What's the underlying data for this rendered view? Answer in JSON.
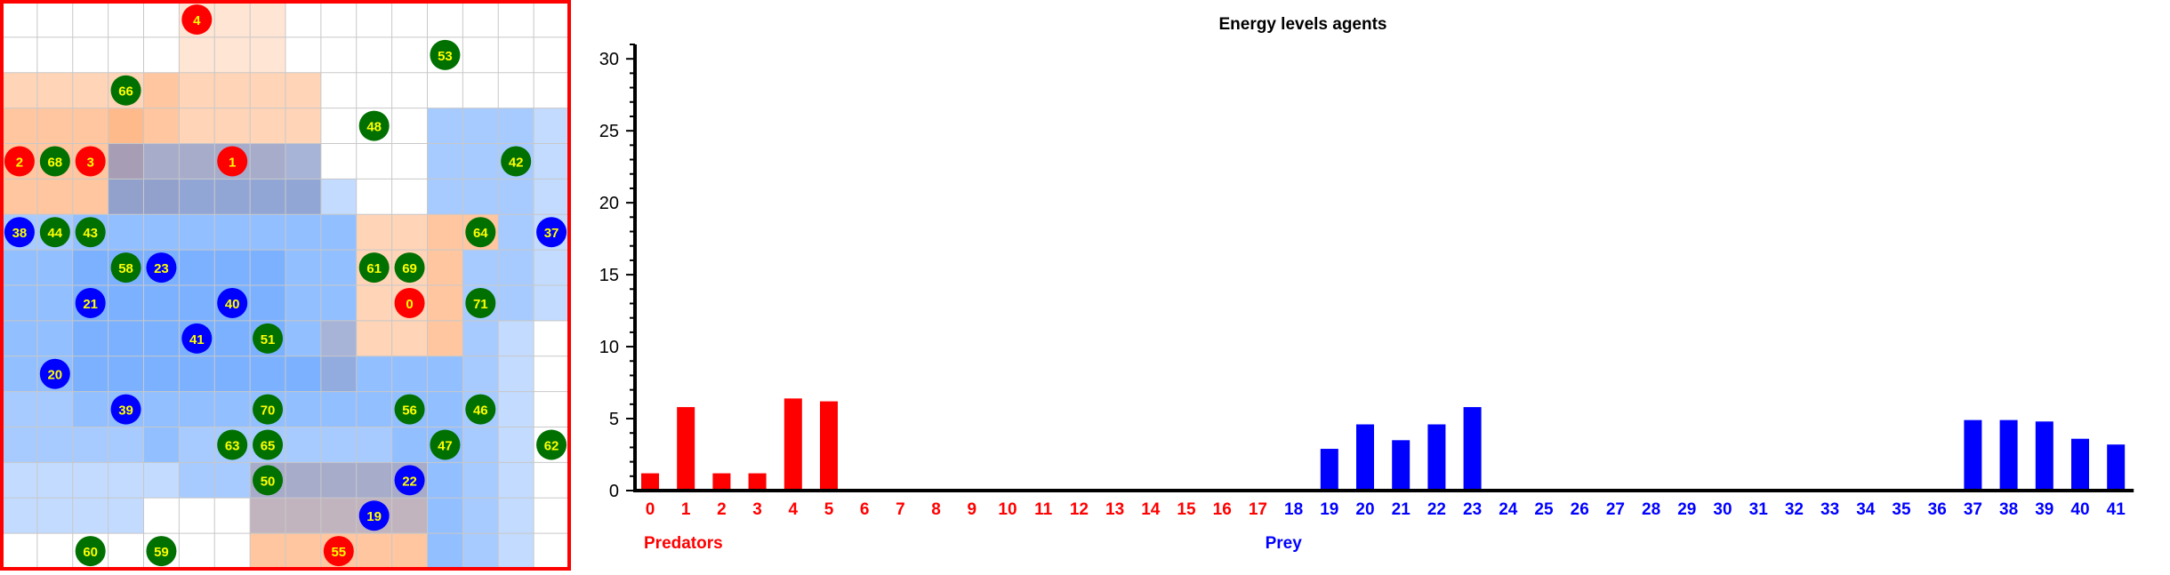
{
  "chart_data": {
    "type": "bar",
    "title": "Energy levels agents",
    "xlabel": "",
    "ylabel": "",
    "ylim": [
      0,
      31
    ],
    "yticks": [
      0,
      5,
      10,
      15,
      20,
      25,
      30
    ],
    "groups": [
      {
        "name": "Predators",
        "color": "#ff0000"
      },
      {
        "name": "Prey",
        "color": "#0000ff"
      }
    ],
    "categories": [
      "0",
      "1",
      "2",
      "3",
      "4",
      "5",
      "6",
      "7",
      "8",
      "9",
      "10",
      "11",
      "12",
      "13",
      "14",
      "15",
      "16",
      "17",
      "18",
      "19",
      "20",
      "21",
      "22",
      "23",
      "24",
      "25",
      "26",
      "27",
      "28",
      "29",
      "30",
      "31",
      "32",
      "33",
      "34",
      "35",
      "36",
      "37",
      "38",
      "39",
      "40",
      "41"
    ],
    "values": [
      1.2,
      5.8,
      1.2,
      1.2,
      6.4,
      6.2,
      0,
      0,
      0,
      0,
      0,
      0,
      0,
      0,
      0,
      0,
      0,
      0,
      0,
      2.9,
      4.6,
      3.5,
      4.6,
      5.8,
      0,
      0,
      0,
      0,
      0,
      0,
      0,
      0,
      0,
      0,
      0,
      0,
      0,
      4.9,
      4.9,
      4.8,
      3.6,
      3.2
    ],
    "predator_count": 18
  },
  "world_grid": {
    "cols": 16,
    "rows": 16,
    "border_color": "#ff0000",
    "predator_zone_color": "#ffa060",
    "prey_zone_color": "#3c8cff",
    "agent_colors": {
      "predator": "#ff0000",
      "prey": "#0000ff",
      "food": "#007000"
    },
    "label_color": "#ffff00",
    "predator_zones": [
      [
        5,
        0,
        1
      ],
      [
        6,
        0,
        1
      ],
      [
        7,
        0,
        1
      ],
      [
        5,
        1,
        1
      ],
      [
        6,
        1,
        1
      ],
      [
        7,
        1,
        1
      ],
      [
        0,
        2,
        2
      ],
      [
        1,
        2,
        2
      ],
      [
        2,
        2,
        2
      ],
      [
        3,
        2,
        2
      ],
      [
        4,
        2,
        3
      ],
      [
        5,
        2,
        2
      ],
      [
        6,
        2,
        2
      ],
      [
        7,
        2,
        2
      ],
      [
        8,
        2,
        2
      ],
      [
        0,
        3,
        3
      ],
      [
        1,
        3,
        3
      ],
      [
        2,
        3,
        3
      ],
      [
        3,
        3,
        4
      ],
      [
        4,
        3,
        3
      ],
      [
        5,
        3,
        2
      ],
      [
        6,
        3,
        2
      ],
      [
        7,
        3,
        2
      ],
      [
        8,
        3,
        2
      ],
      [
        0,
        4,
        3
      ],
      [
        1,
        4,
        3
      ],
      [
        2,
        4,
        3
      ],
      [
        3,
        4,
        4
      ],
      [
        4,
        4,
        3
      ],
      [
        5,
        4,
        3
      ],
      [
        6,
        4,
        3
      ],
      [
        7,
        4,
        3
      ],
      [
        8,
        4,
        2
      ],
      [
        0,
        5,
        3
      ],
      [
        1,
        5,
        3
      ],
      [
        2,
        5,
        3
      ],
      [
        3,
        5,
        4
      ],
      [
        4,
        5,
        4
      ],
      [
        5,
        5,
        3
      ],
      [
        6,
        5,
        3
      ],
      [
        7,
        5,
        3
      ],
      [
        8,
        5,
        3
      ],
      [
        10,
        6,
        2
      ],
      [
        11,
        6,
        2
      ],
      [
        12,
        6,
        3
      ],
      [
        13,
        6,
        3
      ],
      [
        10,
        7,
        2
      ],
      [
        11,
        7,
        2
      ],
      [
        12,
        7,
        3
      ],
      [
        10,
        8,
        2
      ],
      [
        11,
        8,
        2
      ],
      [
        12,
        8,
        3
      ],
      [
        10,
        9,
        2
      ],
      [
        11,
        9,
        2
      ],
      [
        12,
        9,
        3
      ],
      [
        9,
        9,
        2
      ],
      [
        9,
        10,
        2
      ],
      [
        7,
        13,
        3
      ],
      [
        8,
        13,
        3
      ],
      [
        9,
        13,
        3
      ],
      [
        10,
        13,
        3
      ],
      [
        11,
        13,
        3
      ],
      [
        7,
        14,
        3
      ],
      [
        8,
        14,
        3
      ],
      [
        9,
        14,
        3
      ],
      [
        10,
        14,
        3
      ],
      [
        11,
        14,
        3
      ],
      [
        7,
        15,
        3
      ],
      [
        8,
        15,
        3
      ],
      [
        9,
        15,
        3
      ],
      [
        10,
        15,
        3
      ],
      [
        11,
        15,
        3
      ],
      [
        3,
        4,
        2
      ]
    ],
    "prey_zones": [
      [
        12,
        3,
        2
      ],
      [
        13,
        3,
        2
      ],
      [
        14,
        3,
        2
      ],
      [
        15,
        3,
        1
      ],
      [
        12,
        4,
        2
      ],
      [
        13,
        4,
        2
      ],
      [
        14,
        4,
        2
      ],
      [
        15,
        4,
        1
      ],
      [
        12,
        5,
        2
      ],
      [
        13,
        5,
        2
      ],
      [
        14,
        5,
        2
      ],
      [
        15,
        5,
        1
      ],
      [
        9,
        5,
        1
      ],
      [
        3,
        4,
        2
      ],
      [
        4,
        4,
        2
      ],
      [
        5,
        4,
        2
      ],
      [
        6,
        4,
        2
      ],
      [
        7,
        4,
        2
      ],
      [
        8,
        4,
        2
      ],
      [
        3,
        5,
        3
      ],
      [
        4,
        5,
        3
      ],
      [
        5,
        5,
        3
      ],
      [
        6,
        5,
        3
      ],
      [
        7,
        5,
        3
      ],
      [
        8,
        5,
        3
      ],
      [
        0,
        6,
        2
      ],
      [
        1,
        6,
        2
      ],
      [
        2,
        6,
        3
      ],
      [
        3,
        6,
        3
      ],
      [
        4,
        6,
        3
      ],
      [
        5,
        6,
        3
      ],
      [
        6,
        6,
        3
      ],
      [
        7,
        6,
        3
      ],
      [
        8,
        6,
        3
      ],
      [
        9,
        6,
        3
      ],
      [
        14,
        6,
        2
      ],
      [
        15,
        6,
        1
      ],
      [
        0,
        7,
        3
      ],
      [
        1,
        7,
        3
      ],
      [
        2,
        7,
        4
      ],
      [
        3,
        7,
        4
      ],
      [
        4,
        7,
        4
      ],
      [
        5,
        7,
        4
      ],
      [
        6,
        7,
        4
      ],
      [
        7,
        7,
        4
      ],
      [
        8,
        7,
        3
      ],
      [
        9,
        7,
        3
      ],
      [
        13,
        7,
        2
      ],
      [
        14,
        7,
        2
      ],
      [
        15,
        7,
        1
      ],
      [
        0,
        8,
        3
      ],
      [
        1,
        8,
        3
      ],
      [
        2,
        8,
        4
      ],
      [
        3,
        8,
        4
      ],
      [
        4,
        8,
        4
      ],
      [
        5,
        8,
        4
      ],
      [
        6,
        8,
        4
      ],
      [
        7,
        8,
        4
      ],
      [
        8,
        8,
        3
      ],
      [
        9,
        8,
        3
      ],
      [
        13,
        8,
        2
      ],
      [
        14,
        8,
        2
      ],
      [
        15,
        8,
        1
      ],
      [
        0,
        9,
        3
      ],
      [
        1,
        9,
        3
      ],
      [
        2,
        9,
        4
      ],
      [
        3,
        9,
        4
      ],
      [
        4,
        9,
        4
      ],
      [
        5,
        9,
        4
      ],
      [
        6,
        9,
        4
      ],
      [
        7,
        9,
        4
      ],
      [
        8,
        9,
        3
      ],
      [
        9,
        9,
        2
      ],
      [
        13,
        9,
        2
      ],
      [
        14,
        9,
        1
      ],
      [
        0,
        10,
        3
      ],
      [
        1,
        10,
        3
      ],
      [
        2,
        10,
        4
      ],
      [
        3,
        10,
        4
      ],
      [
        4,
        10,
        4
      ],
      [
        5,
        10,
        4
      ],
      [
        6,
        10,
        4
      ],
      [
        7,
        10,
        4
      ],
      [
        8,
        10,
        4
      ],
      [
        9,
        10,
        3
      ],
      [
        10,
        10,
        3
      ],
      [
        11,
        10,
        3
      ],
      [
        12,
        10,
        3
      ],
      [
        13,
        10,
        2
      ],
      [
        14,
        10,
        1
      ],
      [
        0,
        11,
        2
      ],
      [
        1,
        11,
        2
      ],
      [
        2,
        11,
        3
      ],
      [
        3,
        11,
        3
      ],
      [
        4,
        11,
        3
      ],
      [
        5,
        11,
        3
      ],
      [
        6,
        11,
        3
      ],
      [
        7,
        11,
        3
      ],
      [
        8,
        11,
        3
      ],
      [
        9,
        11,
        3
      ],
      [
        10,
        11,
        3
      ],
      [
        11,
        11,
        3
      ],
      [
        12,
        11,
        3
      ],
      [
        13,
        11,
        2
      ],
      [
        14,
        11,
        1
      ],
      [
        0,
        12,
        2
      ],
      [
        1,
        12,
        2
      ],
      [
        2,
        12,
        2
      ],
      [
        3,
        12,
        2
      ],
      [
        4,
        12,
        3
      ],
      [
        5,
        12,
        2
      ],
      [
        6,
        12,
        2
      ],
      [
        7,
        12,
        2
      ],
      [
        8,
        12,
        2
      ],
      [
        9,
        12,
        2
      ],
      [
        10,
        12,
        2
      ],
      [
        11,
        12,
        3
      ],
      [
        12,
        12,
        3
      ],
      [
        13,
        12,
        2
      ],
      [
        14,
        12,
        1
      ],
      [
        0,
        13,
        1
      ],
      [
        1,
        13,
        1
      ],
      [
        2,
        13,
        1
      ],
      [
        3,
        13,
        1
      ],
      [
        4,
        13,
        1
      ],
      [
        5,
        13,
        2
      ],
      [
        6,
        13,
        2
      ],
      [
        7,
        13,
        2
      ],
      [
        8,
        13,
        2
      ],
      [
        9,
        13,
        2
      ],
      [
        10,
        13,
        2
      ],
      [
        11,
        13,
        2
      ],
      [
        12,
        13,
        3
      ],
      [
        13,
        13,
        2
      ],
      [
        14,
        13,
        1
      ],
      [
        0,
        14,
        1
      ],
      [
        1,
        14,
        1
      ],
      [
        2,
        14,
        1
      ],
      [
        3,
        14,
        1
      ],
      [
        7,
        14,
        1
      ],
      [
        8,
        14,
        1
      ],
      [
        9,
        14,
        1
      ],
      [
        10,
        14,
        1
      ],
      [
        11,
        14,
        1
      ],
      [
        12,
        14,
        3
      ],
      [
        13,
        14,
        2
      ],
      [
        14,
        14,
        1
      ],
      [
        12,
        15,
        3
      ],
      [
        13,
        15,
        2
      ],
      [
        14,
        15,
        1
      ]
    ],
    "agents": [
      {
        "label": "4",
        "type": "predator",
        "col": 5,
        "row": 0
      },
      {
        "label": "53",
        "type": "food",
        "col": 12,
        "row": 1
      },
      {
        "label": "66",
        "type": "food",
        "col": 3,
        "row": 2
      },
      {
        "label": "48",
        "type": "food",
        "col": 10,
        "row": 3
      },
      {
        "label": "2",
        "type": "predator",
        "col": 0,
        "row": 4
      },
      {
        "label": "68",
        "type": "food",
        "col": 1,
        "row": 4
      },
      {
        "label": "3",
        "type": "predator",
        "col": 2,
        "row": 4
      },
      {
        "label": "1",
        "type": "predator",
        "col": 6,
        "row": 4
      },
      {
        "label": "42",
        "type": "food",
        "col": 14,
        "row": 4
      },
      {
        "label": "38",
        "type": "prey",
        "col": 0,
        "row": 6
      },
      {
        "label": "44",
        "type": "food",
        "col": 1,
        "row": 6
      },
      {
        "label": "43",
        "type": "food",
        "col": 2,
        "row": 6
      },
      {
        "label": "64",
        "type": "food",
        "col": 13,
        "row": 6
      },
      {
        "label": "37",
        "type": "prey",
        "col": 15,
        "row": 6
      },
      {
        "label": "58",
        "type": "food",
        "col": 3,
        "row": 7
      },
      {
        "label": "23",
        "type": "prey",
        "col": 4,
        "row": 7
      },
      {
        "label": "61",
        "type": "food",
        "col": 10,
        "row": 7
      },
      {
        "label": "69",
        "type": "food",
        "col": 11,
        "row": 7
      },
      {
        "label": "21",
        "type": "prey",
        "col": 2,
        "row": 8
      },
      {
        "label": "40",
        "type": "prey",
        "col": 6,
        "row": 8
      },
      {
        "label": "0",
        "type": "predator",
        "col": 11,
        "row": 8
      },
      {
        "label": "71",
        "type": "food",
        "col": 13,
        "row": 8
      },
      {
        "label": "41",
        "type": "prey",
        "col": 5,
        "row": 9
      },
      {
        "label": "51",
        "type": "food",
        "col": 7,
        "row": 9
      },
      {
        "label": "20",
        "type": "prey",
        "col": 1,
        "row": 10
      },
      {
        "label": "39",
        "type": "prey",
        "col": 3,
        "row": 11
      },
      {
        "label": "70",
        "type": "food",
        "col": 7,
        "row": 11
      },
      {
        "label": "56",
        "type": "food",
        "col": 11,
        "row": 11
      },
      {
        "label": "46",
        "type": "food",
        "col": 13,
        "row": 11
      },
      {
        "label": "63",
        "type": "food",
        "col": 6,
        "row": 12
      },
      {
        "label": "65",
        "type": "food",
        "col": 7,
        "row": 12
      },
      {
        "label": "47",
        "type": "food",
        "col": 12,
        "row": 12
      },
      {
        "label": "62",
        "type": "food",
        "col": 15,
        "row": 12
      },
      {
        "label": "50",
        "type": "food",
        "col": 7,
        "row": 13
      },
      {
        "label": "22",
        "type": "prey",
        "col": 11,
        "row": 13
      },
      {
        "label": "19",
        "type": "prey",
        "col": 10,
        "row": 14
      },
      {
        "label": "60",
        "type": "food",
        "col": 2,
        "row": 15
      },
      {
        "label": "59",
        "type": "food",
        "col": 4,
        "row": 15
      },
      {
        "label": "55",
        "type": "predator",
        "col": 9,
        "row": 15
      }
    ]
  }
}
